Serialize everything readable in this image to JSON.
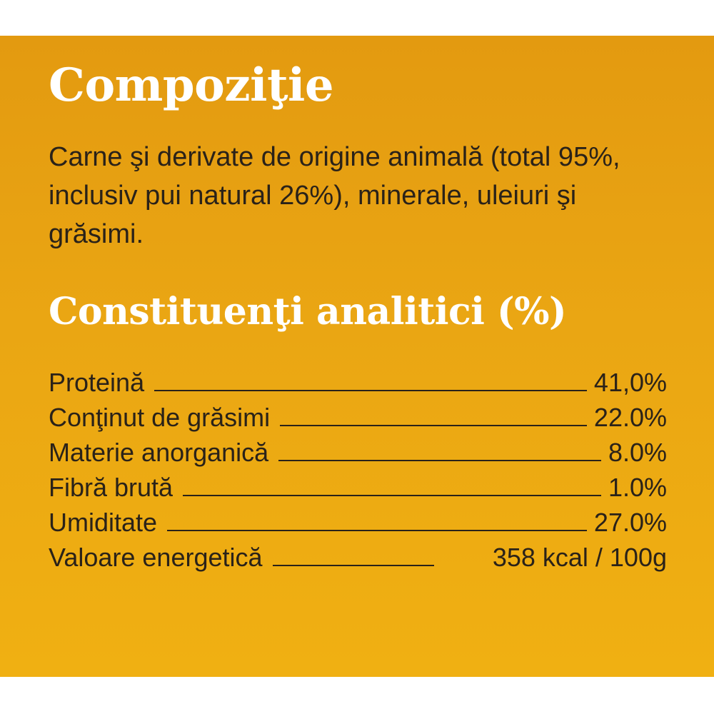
{
  "composition": {
    "title": "Compoziţie",
    "text": "Carne şi derivate de origine animală (total 95%, inclusiv pui natural 26%), minerale, uleiuri şi grăsimi."
  },
  "analytics": {
    "title": "Constituenţi analitici (%)",
    "rows": [
      {
        "label": "Proteină",
        "value": "41,0%"
      },
      {
        "label": "Conţinut de grăsimi",
        "value": "22.0%"
      },
      {
        "label": "Materie anorganică",
        "value": "8.0%"
      },
      {
        "label": "Fibră brută",
        "value": "1.0%"
      },
      {
        "label": "Umiditate",
        "value": "27.0%"
      },
      {
        "label": "Valoare energetică",
        "value": "358 kcal / 100g"
      }
    ]
  },
  "colors": {
    "panel_top": "#e39a10",
    "panel_bottom": "#f0b012",
    "heading": "#ffffff",
    "body_text": "#2a2219"
  }
}
